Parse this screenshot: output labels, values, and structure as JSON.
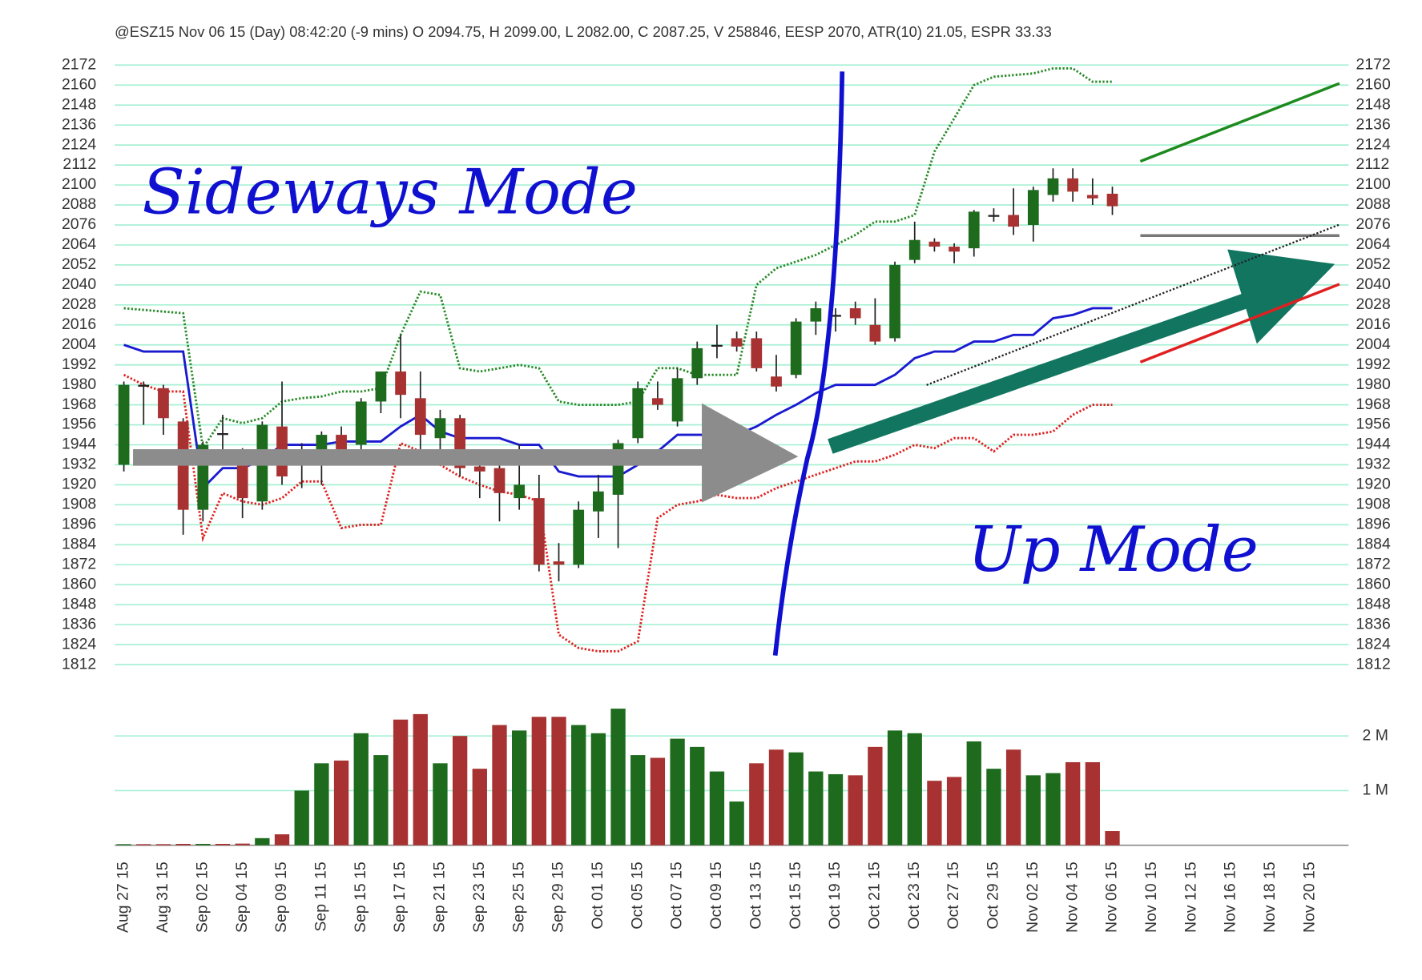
{
  "chart_data": {
    "type": "candlestick",
    "title": "@ESZ15 Nov 06 15 (Day) 08:42:20 (-9 mins) O 2094.75, H 2099.00, L 2082.00, C 2087.25, V 258846, EESP 2070, ATR(10) 21.05, ESPR 33.33",
    "annotations": [
      "Sideways Mode",
      "Up Mode"
    ],
    "categories": [
      "Aug 27 15",
      null,
      "Aug 31 15",
      null,
      "Sep 02 15",
      null,
      "Sep 04 15",
      null,
      "Sep 09 15",
      null,
      "Sep 11 15",
      null,
      "Sep 15 15",
      null,
      "Sep 17 15",
      null,
      "Sep 21 15",
      null,
      "Sep 23 15",
      null,
      "Sep 25 15",
      null,
      "Sep 29 15",
      null,
      "Oct 01 15",
      null,
      "Oct 05 15",
      null,
      "Oct 07 15",
      null,
      "Oct 09 15",
      null,
      "Oct 13 15",
      null,
      "Oct 15 15",
      null,
      "Oct 19 15",
      null,
      "Oct 21 15",
      null,
      "Oct 23 15",
      null,
      "Oct 27 15",
      null,
      "Oct 29 15",
      null,
      "Nov 02 15",
      null,
      "Nov 04 15",
      null,
      "Nov 06 15",
      null,
      "Nov 10 15",
      null,
      "Nov 12 15",
      null,
      "Nov 16 15",
      null,
      "Nov 18 15",
      null,
      "Nov 20 15",
      null
    ],
    "open": [
      1932,
      1980,
      1978,
      1958,
      1905,
      1951,
      1938,
      1910,
      1955,
      1935,
      1935,
      1950,
      1944,
      1970,
      1988,
      1972,
      1948,
      1960,
      1931,
      1930,
      1912,
      1912,
      1874,
      1872,
      1904,
      1914,
      1948,
      1972,
      1958,
      1984,
      2004,
      2008,
      2008,
      1985,
      1986,
      2018,
      2022,
      2026,
      2016,
      2008,
      2055,
      2066,
      2063,
      2062,
      2082,
      2082,
      2076,
      2094,
      2104,
      2094,
      2094.75,
      null,
      null,
      null,
      null,
      null,
      null,
      null,
      null,
      null,
      null,
      null
    ],
    "high": [
      1982,
      1982,
      1980,
      1960,
      1946,
      1962,
      1942,
      1958,
      1982,
      1945,
      1952,
      1955,
      1972,
      1988,
      2010,
      1988,
      1965,
      1962,
      1936,
      1932,
      1944,
      1926,
      1885,
      1910,
      1926,
      1947,
      1982,
      1982,
      1990,
      2006,
      2016,
      2012,
      2012,
      1998,
      2020,
      2030,
      2026,
      2030,
      2032,
      2054,
      2078,
      2068,
      2065,
      2085,
      2086,
      2098,
      2099,
      2110,
      2110,
      2104,
      2099,
      null,
      null,
      null,
      null,
      null,
      null,
      null,
      null,
      null,
      null,
      null
    ],
    "low": [
      1928,
      1956,
      1950,
      1890,
      1898,
      1935,
      1900,
      1905,
      1920,
      1918,
      1920,
      1935,
      1938,
      1963,
      1960,
      1940,
      1938,
      1925,
      1912,
      1898,
      1905,
      1868,
      1862,
      1870,
      1888,
      1882,
      1945,
      1965,
      1955,
      1980,
      1996,
      2000,
      1988,
      1976,
      1984,
      2010,
      2012,
      2016,
      2004,
      2006,
      2053,
      2060,
      2053,
      2057,
      2078,
      2070,
      2066,
      2090,
      2090,
      2088,
      2082,
      null,
      null,
      null,
      null,
      null,
      null,
      null,
      null,
      null,
      null,
      null
    ],
    "close": [
      1980,
      1980,
      1960,
      1905,
      1944,
      1951,
      1912,
      1956,
      1925,
      1935,
      1950,
      1940,
      1970,
      1988,
      1974,
      1950,
      1960,
      1930,
      1928,
      1915,
      1920,
      1872,
      1872,
      1905,
      1916,
      1945,
      1978,
      1968,
      1984,
      2002,
      2004,
      2003,
      1990,
      1979,
      2018,
      2026,
      2022,
      2020,
      2006,
      2052,
      2067,
      2063,
      2060,
      2084,
      2082,
      2075,
      2097,
      2104,
      2096,
      2092,
      2087.25,
      null,
      null,
      null,
      null,
      null,
      null,
      null,
      null,
      null,
      null,
      null
    ],
    "up_color": "#1e6b1e",
    "down_color": "#a83232",
    "doji_color": "#222222",
    "ylim": [
      1812,
      2172
    ],
    "yticks": [
      1812,
      1824,
      1836,
      1848,
      1860,
      1872,
      1884,
      1896,
      1908,
      1920,
      1932,
      1944,
      1956,
      1968,
      1980,
      1992,
      2004,
      2016,
      2028,
      2040,
      2052,
      2064,
      2076,
      2088,
      2100,
      2112,
      2124,
      2136,
      2148,
      2160,
      2172
    ],
    "grid": true,
    "grid_color": "#a8f0d4",
    "overlays": [
      {
        "color": "#2a8a2a",
        "dash": true,
        "values": [
          2026,
          2025,
          2024,
          2023,
          1942,
          1960,
          1957,
          1960,
          1970,
          1972,
          1973,
          1976,
          1976,
          1978,
          2010,
          2036,
          2034,
          1990,
          1988,
          1990,
          1992,
          1990,
          1970,
          1968,
          1968,
          1968,
          1970,
          1990,
          1990,
          1986,
          1986,
          1986,
          2040,
          2050,
          2054,
          2058,
          2064,
          2070,
          2078,
          2078,
          2082,
          2120,
          2140,
          2160,
          2165,
          2166,
          2167,
          2170,
          2170,
          2162,
          2162,
          null,
          null,
          null,
          null,
          null,
          null,
          null,
          null,
          null,
          null,
          null
        ]
      },
      {
        "color": "#e02020",
        "dash": true,
        "values": [
          1986,
          1980,
          1976,
          1976,
          1888,
          1915,
          1910,
          1908,
          1912,
          1922,
          1922,
          1894,
          1896,
          1896,
          1945,
          1940,
          1932,
          1925,
          1920,
          1916,
          1914,
          1910,
          1830,
          1822,
          1820,
          1820,
          1826,
          1900,
          1908,
          1910,
          1914,
          1912,
          1912,
          1918,
          1922,
          1926,
          1930,
          1934,
          1934,
          1938,
          1944,
          1942,
          1948,
          1948,
          1940,
          1950,
          1950,
          1952,
          1962,
          1968,
          1968,
          null,
          null,
          null,
          null,
          null,
          null,
          null,
          null,
          null,
          null,
          null
        ]
      },
      {
        "color": "#1a1ad0",
        "dash": false,
        "values": [
          2004,
          2000,
          2000,
          2000,
          1918,
          1930,
          1930,
          1935,
          1944,
          1944,
          1944,
          1946,
          1946,
          1946,
          1955,
          1962,
          1952,
          1948,
          1948,
          1948,
          1944,
          1944,
          1928,
          1925,
          1925,
          1925,
          1932,
          1940,
          1950,
          1950,
          1950,
          1950,
          1955,
          1962,
          1968,
          1975,
          1980,
          1980,
          1980,
          1986,
          1996,
          2000,
          2000,
          2006,
          2006,
          2010,
          2010,
          2020,
          2022,
          2026,
          2026,
          null,
          null,
          null,
          null,
          null,
          null,
          null,
          null,
          null,
          null,
          null
        ]
      }
    ],
    "volume": {
      "ylim": [
        0,
        2500000
      ],
      "yticks": [
        {
          "value": 1000000,
          "label": "1 M"
        },
        {
          "value": 2000000,
          "label": "2 M"
        }
      ],
      "values": [
        20000,
        20000,
        20000,
        25000,
        25000,
        25000,
        30000,
        130000,
        200000,
        1000000,
        1500000,
        1550000,
        2050000,
        1650000,
        2300000,
        2400000,
        1500000,
        2000000,
        1400000,
        2200000,
        2100000,
        2350000,
        2350000,
        2200000,
        2050000,
        2500000,
        1650000,
        1600000,
        1950000,
        1800000,
        1350000,
        800000,
        1500000,
        1750000,
        1700000,
        1350000,
        1300000,
        1280000,
        1800000,
        2100000,
        2050000,
        1180000,
        1250000,
        1900000,
        1400000,
        1750000,
        1280000,
        1320000,
        1520000,
        1520000,
        258846,
        null,
        null,
        null,
        null,
        null,
        null,
        null,
        null,
        null,
        null,
        null
      ],
      "colors": [
        "#1e6b1e",
        "#a83232",
        "#a83232",
        "#a83232",
        "#1e6b1e",
        "#a83232",
        "#a83232",
        "#1e6b1e",
        "#a83232",
        "#1e6b1e",
        "#1e6b1e",
        "#a83232",
        "#1e6b1e",
        "#1e6b1e",
        "#a83232",
        "#a83232",
        "#1e6b1e",
        "#a83232",
        "#a83232",
        "#a83232",
        "#1e6b1e",
        "#a83232",
        "#a83232",
        "#1e6b1e",
        "#1e6b1e",
        "#1e6b1e",
        "#1e6b1e",
        "#a83232",
        "#1e6b1e",
        "#1e6b1e",
        "#1e6b1e",
        "#1e6b1e",
        "#a83232",
        "#a83232",
        "#1e6b1e",
        "#1e6b1e",
        "#1e6b1e",
        "#a83232",
        "#a83232",
        "#1e6b1e",
        "#1e6b1e",
        "#a83232",
        "#a83232",
        "#1e6b1e",
        "#1e6b1e",
        "#a83232",
        "#1e6b1e",
        "#1e6b1e",
        "#a83232",
        "#a83232",
        "#a83232",
        null,
        null,
        null,
        null,
        null,
        null,
        null,
        null,
        null,
        null,
        null
      ]
    }
  }
}
